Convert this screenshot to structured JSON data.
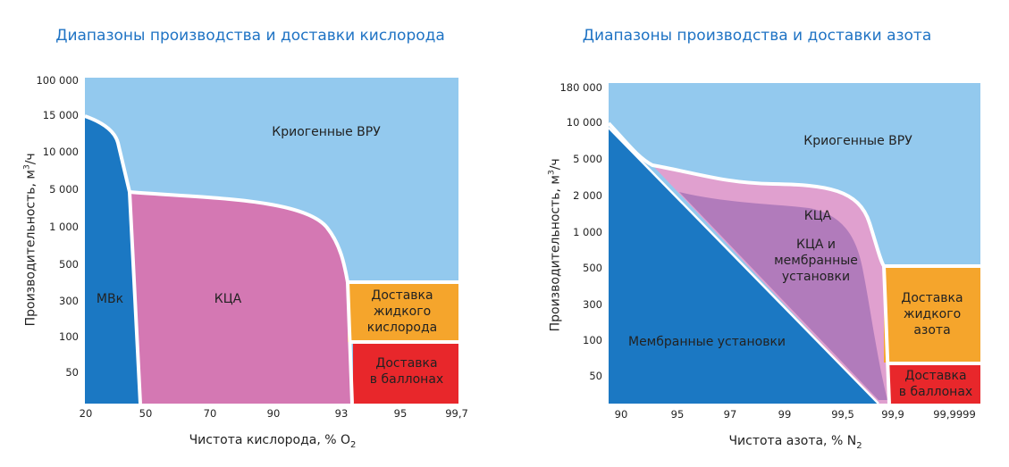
{
  "chart_data": [
    {
      "type": "area",
      "title": "Диапазоны производства и доставки кислорода",
      "xlabel": "Чистота кислорода, % O",
      "xlabel_sub": "2",
      "ylabel": "Производительность, м",
      "ylabel_sup": "3",
      "ylabel_tail": "/ч",
      "x_ticks": [
        "20",
        "50",
        "70",
        "90",
        "93",
        "95",
        "99,7"
      ],
      "y_ticks": [
        "100 000",
        "15 000",
        "10 000",
        "5 000",
        "1 000",
        "500",
        "300",
        "100",
        "50"
      ],
      "regions": [
        {
          "label": "Криогенные ВРУ",
          "color": "#93c9ee"
        },
        {
          "label": "МВк",
          "color": "#1b78c3"
        },
        {
          "label": "КЦА",
          "color": "#d478b3"
        },
        {
          "label": "Доставка жидкого кислорода",
          "lines": [
            "Доставка",
            "жидкого",
            "кислорода"
          ],
          "color": "#f5a52c"
        },
        {
          "label": "Доставка в баллонах",
          "lines": [
            "Доставка",
            "в баллонах"
          ],
          "color": "#e8272b"
        }
      ]
    },
    {
      "type": "area",
      "title": "Диапазоны производства и доставки азота",
      "xlabel": "Чистота азота, % N",
      "xlabel_sub": "2",
      "ylabel": "Производительность, м",
      "ylabel_sup": "3",
      "ylabel_tail": "/ч",
      "x_ticks": [
        "90",
        "95",
        "97",
        "99",
        "99,5",
        "99,9",
        "99,9999"
      ],
      "y_ticks": [
        "180 000",
        "10 000",
        "5 000",
        "2 000",
        "1 000",
        "500",
        "300",
        "100",
        "50"
      ],
      "regions": [
        {
          "label": "Криогенные ВРУ",
          "color": "#93c9ee"
        },
        {
          "label": "Мембранные установки",
          "color": "#1b78c3"
        },
        {
          "label": "КЦА",
          "color": "#e0a0cf"
        },
        {
          "label": "КЦА и мембранные установки",
          "lines": [
            "КЦА и",
            "мембранные",
            "установки"
          ],
          "color": "#b17bbb"
        },
        {
          "label": "Доставка жидкого азота",
          "lines": [
            "Доставка",
            "жидкого",
            "азота"
          ],
          "color": "#f5a52c"
        },
        {
          "label": "Доставка в баллонах",
          "lines": [
            "Доставка",
            "в баллонах"
          ],
          "color": "#e8272b"
        }
      ]
    }
  ]
}
